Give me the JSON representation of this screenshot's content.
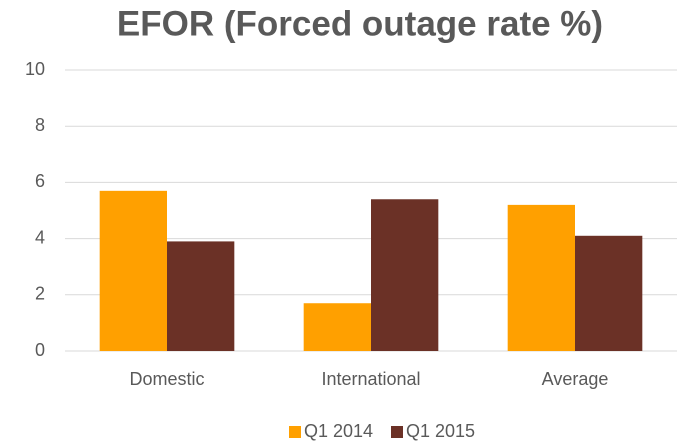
{
  "chart_data": {
    "type": "bar",
    "title": "EFOR (Forced outage rate %)",
    "categories": [
      "Domestic",
      "International",
      "Average"
    ],
    "series": [
      {
        "name": "Q1 2014",
        "color": "#ffa000",
        "values": [
          5.7,
          1.7,
          5.2
        ]
      },
      {
        "name": "Q1 2015",
        "color": "#6b3126",
        "values": [
          3.9,
          5.4,
          4.1
        ]
      }
    ],
    "ylim": [
      0,
      10
    ],
    "yticks": [
      0,
      2,
      4,
      6,
      8,
      10
    ],
    "grid": true,
    "legend": "bottom"
  }
}
